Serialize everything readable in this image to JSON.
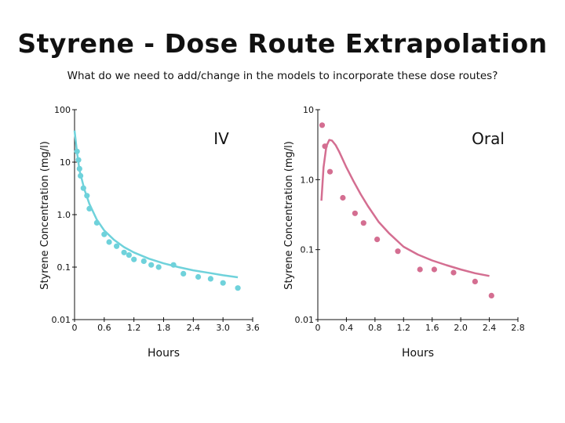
{
  "slide": {
    "title": "Styrene - Dose Route Extrapolation",
    "subtitle": "What do we need to add/change in the models to incorporate these dose routes?"
  },
  "chart_data": [
    {
      "type": "scatter",
      "title": "IV",
      "xlabel": "Hours",
      "ylabel": "Styrene Concentration (mg/l)",
      "yscale": "log",
      "xlim": [
        0,
        3.6
      ],
      "ylim": [
        0.01,
        100
      ],
      "xticks": [
        "0",
        "0.6",
        "1.2",
        "1.8",
        "2.4",
        "3.0",
        "3.6"
      ],
      "yticks": [
        "0.01",
        "0.1",
        "1.0",
        "10",
        "100"
      ],
      "grid": false,
      "color": "#6fd2db",
      "points": {
        "name": "",
        "x": [
          0.05,
          0.08,
          0.1,
          0.12,
          0.18,
          0.25,
          0.3,
          0.45,
          0.6,
          0.7,
          0.85,
          1.0,
          1.1,
          1.2,
          1.4,
          1.55,
          1.7,
          2.0,
          2.2,
          2.5,
          2.75,
          3.0,
          3.3
        ],
        "y": [
          16,
          11,
          7.5,
          5.5,
          3.2,
          2.3,
          1.3,
          0.7,
          0.42,
          0.3,
          0.25,
          0.19,
          0.17,
          0.14,
          0.13,
          0.11,
          0.1,
          0.11,
          0.075,
          0.065,
          0.06,
          0.05,
          0.04
        ]
      },
      "fit": {
        "name": "",
        "x": [
          0,
          0.05,
          0.1,
          0.2,
          0.3,
          0.45,
          0.6,
          0.8,
          1.0,
          1.2,
          1.5,
          1.8,
          2.1,
          2.4,
          2.7,
          3.0,
          3.3
        ],
        "y": [
          40,
          15,
          7,
          3,
          1.6,
          0.8,
          0.5,
          0.33,
          0.24,
          0.19,
          0.145,
          0.118,
          0.1,
          0.087,
          0.078,
          0.07,
          0.064
        ]
      }
    },
    {
      "type": "scatter",
      "title": "Oral",
      "xlabel": "Hours",
      "ylabel": "Styrene Concentration (mg/l)",
      "yscale": "log",
      "xlim": [
        0,
        2.8
      ],
      "ylim": [
        0.01,
        10
      ],
      "xticks": [
        "0",
        "0.4",
        "0.8",
        "1.2",
        "1.6",
        "2.0",
        "2.4",
        "2.8"
      ],
      "yticks": [
        "0.01",
        "0.1",
        "1.0",
        "10"
      ],
      "grid": false,
      "color": "#d46e91",
      "points": {
        "name": "",
        "x": [
          0.06,
          0.1,
          0.17,
          0.35,
          0.52,
          0.64,
          0.83,
          1.12,
          1.43,
          1.63,
          1.9,
          2.2,
          2.43
        ],
        "y": [
          6.0,
          3.0,
          1.3,
          0.55,
          0.33,
          0.24,
          0.14,
          0.095,
          0.052,
          0.052,
          0.047,
          0.035,
          0.022
        ]
      },
      "fit": {
        "name": "",
        "x": [
          0.05,
          0.08,
          0.12,
          0.16,
          0.2,
          0.25,
          0.3,
          0.4,
          0.5,
          0.6,
          0.7,
          0.85,
          1.0,
          1.2,
          1.4,
          1.6,
          1.8,
          2.0,
          2.2,
          2.4
        ],
        "y": [
          0.5,
          1.5,
          3.0,
          3.7,
          3.6,
          3.1,
          2.5,
          1.5,
          0.95,
          0.62,
          0.42,
          0.25,
          0.17,
          0.11,
          0.085,
          0.07,
          0.06,
          0.052,
          0.046,
          0.042
        ]
      }
    }
  ]
}
